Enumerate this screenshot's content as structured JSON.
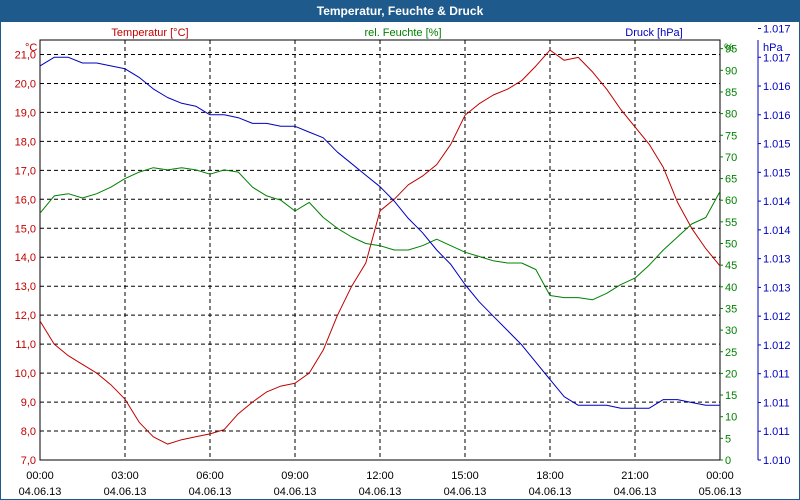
{
  "chart_data": {
    "type": "line",
    "title": "Temperatur, Feuchte & Druck",
    "x_tick_times": [
      "00:00",
      "03:00",
      "06:00",
      "09:00",
      "12:00",
      "15:00",
      "18:00",
      "21:00",
      "00:00"
    ],
    "x_tick_dates": [
      "04.06.13",
      "04.06.13",
      "04.06.13",
      "04.06.13",
      "04.06.13",
      "04.06.13",
      "04.06.13",
      "04.06.13",
      "05.06.13"
    ],
    "xlim": [
      0,
      24
    ],
    "axes": {
      "temperature": {
        "label": "Temperatur [°C]",
        "unit": "°C",
        "ylim": [
          7.0,
          21.5
        ],
        "ticks": [
          "7,0",
          "8,0",
          "9,0",
          "10,0",
          "11,0",
          "12,0",
          "13,0",
          "14,0",
          "15,0",
          "16,0",
          "17,0",
          "18,0",
          "19,0",
          "20,0",
          "21,0"
        ],
        "tick_values": [
          7,
          8,
          9,
          10,
          11,
          12,
          13,
          14,
          15,
          16,
          17,
          18,
          19,
          20,
          21
        ]
      },
      "humidity": {
        "label": "rel. Feuchte [%]",
        "unit": "%",
        "ylim": [
          0,
          97
        ],
        "ticks": [
          "0",
          "5",
          "10",
          "15",
          "20",
          "25",
          "30",
          "35",
          "40",
          "45",
          "50",
          "55",
          "60",
          "65",
          "70",
          "75",
          "80",
          "85",
          "90",
          "95"
        ],
        "tick_values": [
          0,
          5,
          10,
          15,
          20,
          25,
          30,
          35,
          40,
          45,
          50,
          55,
          60,
          65,
          70,
          75,
          80,
          85,
          90,
          95
        ]
      },
      "pressure": {
        "label": "Druck [hPa]",
        "unit": "hPa",
        "ylim": [
          1010.0,
          1017.3
        ],
        "ticks": [
          "1.010",
          "1.011",
          "1.011",
          "1.011",
          "1.012",
          "1.012",
          "1.013",
          "1.013",
          "1.014",
          "1.014",
          "1.015",
          "1.015",
          "1.016",
          "1.016",
          "1.017",
          "1.017"
        ],
        "tick_values": [
          1010.0,
          1010.5,
          1011.0,
          1011.5,
          1012.0,
          1012.5,
          1013.0,
          1013.5,
          1014.0,
          1014.5,
          1015.0,
          1015.5,
          1016.0,
          1016.5,
          1017.0,
          1017.5
        ]
      }
    },
    "colors": {
      "temperature": "#c00000",
      "humidity": "#008000",
      "pressure": "#0000c0",
      "header": "#1e5a8c",
      "frame": "#1e5a8c"
    },
    "series": [
      {
        "name": "Temperatur [°C]",
        "axis": "temperature",
        "points": [
          [
            0,
            11.8
          ],
          [
            0.5,
            11.0
          ],
          [
            1,
            10.6
          ],
          [
            1.5,
            10.3
          ],
          [
            2,
            10.0
          ],
          [
            2.5,
            9.6
          ],
          [
            3,
            9.1
          ],
          [
            3.5,
            8.3
          ],
          [
            4,
            7.8
          ],
          [
            4.5,
            7.55
          ],
          [
            5,
            7.7
          ],
          [
            5.5,
            7.8
          ],
          [
            6,
            7.9
          ],
          [
            6.5,
            8.05
          ],
          [
            7,
            8.6
          ],
          [
            7.5,
            9.0
          ],
          [
            8,
            9.35
          ],
          [
            8.5,
            9.55
          ],
          [
            9,
            9.65
          ],
          [
            9.5,
            10.0
          ],
          [
            10,
            10.8
          ],
          [
            10.5,
            12.0
          ],
          [
            11,
            13.0
          ],
          [
            11.5,
            13.8
          ],
          [
            12,
            15.6
          ],
          [
            12.5,
            16.0
          ],
          [
            13,
            16.5
          ],
          [
            13.5,
            16.8
          ],
          [
            14,
            17.2
          ],
          [
            14.5,
            17.9
          ],
          [
            15,
            18.9
          ],
          [
            15.5,
            19.3
          ],
          [
            16,
            19.6
          ],
          [
            16.5,
            19.8
          ],
          [
            17,
            20.1
          ],
          [
            17.5,
            20.6
          ],
          [
            18,
            21.15
          ],
          [
            18.5,
            20.8
          ],
          [
            19,
            20.9
          ],
          [
            19.5,
            20.4
          ],
          [
            20,
            19.8
          ],
          [
            20.5,
            19.1
          ],
          [
            21,
            18.5
          ],
          [
            21.5,
            17.9
          ],
          [
            22,
            17.1
          ],
          [
            22.5,
            15.9
          ],
          [
            23,
            15.0
          ],
          [
            23.5,
            14.3
          ],
          [
            24,
            13.7
          ]
        ]
      },
      {
        "name": "rel. Feuchte [%]",
        "axis": "humidity",
        "points": [
          [
            0,
            57
          ],
          [
            0.5,
            61
          ],
          [
            1,
            61.5
          ],
          [
            1.5,
            60.5
          ],
          [
            2,
            61.5
          ],
          [
            2.5,
            63
          ],
          [
            3,
            65
          ],
          [
            3.5,
            66.5
          ],
          [
            4,
            67.5
          ],
          [
            4.5,
            67
          ],
          [
            5,
            67.5
          ],
          [
            5.5,
            67
          ],
          [
            6,
            66
          ],
          [
            6.5,
            67
          ],
          [
            7,
            66.5
          ],
          [
            7.5,
            63
          ],
          [
            8,
            61
          ],
          [
            8.5,
            60
          ],
          [
            9,
            57.5
          ],
          [
            9.5,
            59.5
          ],
          [
            10,
            56
          ],
          [
            10.5,
            53.5
          ],
          [
            11,
            51.5
          ],
          [
            11.5,
            50
          ],
          [
            12,
            49.5
          ],
          [
            12.5,
            48.5
          ],
          [
            13,
            48.5
          ],
          [
            13.5,
            49.5
          ],
          [
            14,
            51
          ],
          [
            14.5,
            49.5
          ],
          [
            15,
            48
          ],
          [
            15.5,
            47
          ],
          [
            16,
            46
          ],
          [
            16.5,
            45.5
          ],
          [
            17,
            45.5
          ],
          [
            17.5,
            44
          ],
          [
            18,
            38
          ],
          [
            18.5,
            37.5
          ],
          [
            19,
            37.5
          ],
          [
            19.5,
            37
          ],
          [
            20,
            38.5
          ],
          [
            20.5,
            40.5
          ],
          [
            21,
            42
          ],
          [
            21.5,
            45
          ],
          [
            22,
            48.5
          ],
          [
            22.5,
            51.5
          ],
          [
            23,
            54.5
          ],
          [
            23.5,
            56
          ],
          [
            24,
            62
          ]
        ]
      },
      {
        "name": "Druck [hPa]",
        "axis": "pressure",
        "points": [
          [
            0,
            1016.85
          ],
          [
            0.5,
            1017.0
          ],
          [
            1,
            1017.0
          ],
          [
            1.5,
            1016.9
          ],
          [
            2,
            1016.9
          ],
          [
            2.5,
            1016.85
          ],
          [
            3,
            1016.8
          ],
          [
            3.5,
            1016.65
          ],
          [
            4,
            1016.45
          ],
          [
            4.5,
            1016.3
          ],
          [
            5,
            1016.2
          ],
          [
            5.5,
            1016.15
          ],
          [
            6,
            1016.0
          ],
          [
            6.5,
            1016.0
          ],
          [
            7,
            1015.95
          ],
          [
            7.5,
            1015.85
          ],
          [
            8,
            1015.85
          ],
          [
            8.5,
            1015.8
          ],
          [
            9,
            1015.8
          ],
          [
            9.5,
            1015.7
          ],
          [
            10,
            1015.6
          ],
          [
            10.5,
            1015.35
          ],
          [
            11,
            1015.15
          ],
          [
            11.5,
            1014.95
          ],
          [
            12,
            1014.75
          ],
          [
            12.5,
            1014.5
          ],
          [
            13,
            1014.2
          ],
          [
            13.5,
            1013.95
          ],
          [
            14,
            1013.65
          ],
          [
            14.5,
            1013.4
          ],
          [
            15,
            1013.05
          ],
          [
            15.5,
            1012.75
          ],
          [
            16,
            1012.5
          ],
          [
            16.5,
            1012.25
          ],
          [
            17,
            1012.0
          ],
          [
            17.5,
            1011.7
          ],
          [
            18,
            1011.4
          ],
          [
            18.5,
            1011.1
          ],
          [
            19,
            1010.95
          ],
          [
            19.5,
            1010.95
          ],
          [
            20,
            1010.95
          ],
          [
            20.5,
            1010.9
          ],
          [
            21,
            1010.9
          ],
          [
            21.5,
            1010.9
          ],
          [
            22,
            1011.05
          ],
          [
            22.5,
            1011.05
          ],
          [
            23,
            1011.0
          ],
          [
            23.5,
            1010.95
          ],
          [
            24,
            1010.95
          ]
        ]
      }
    ]
  }
}
